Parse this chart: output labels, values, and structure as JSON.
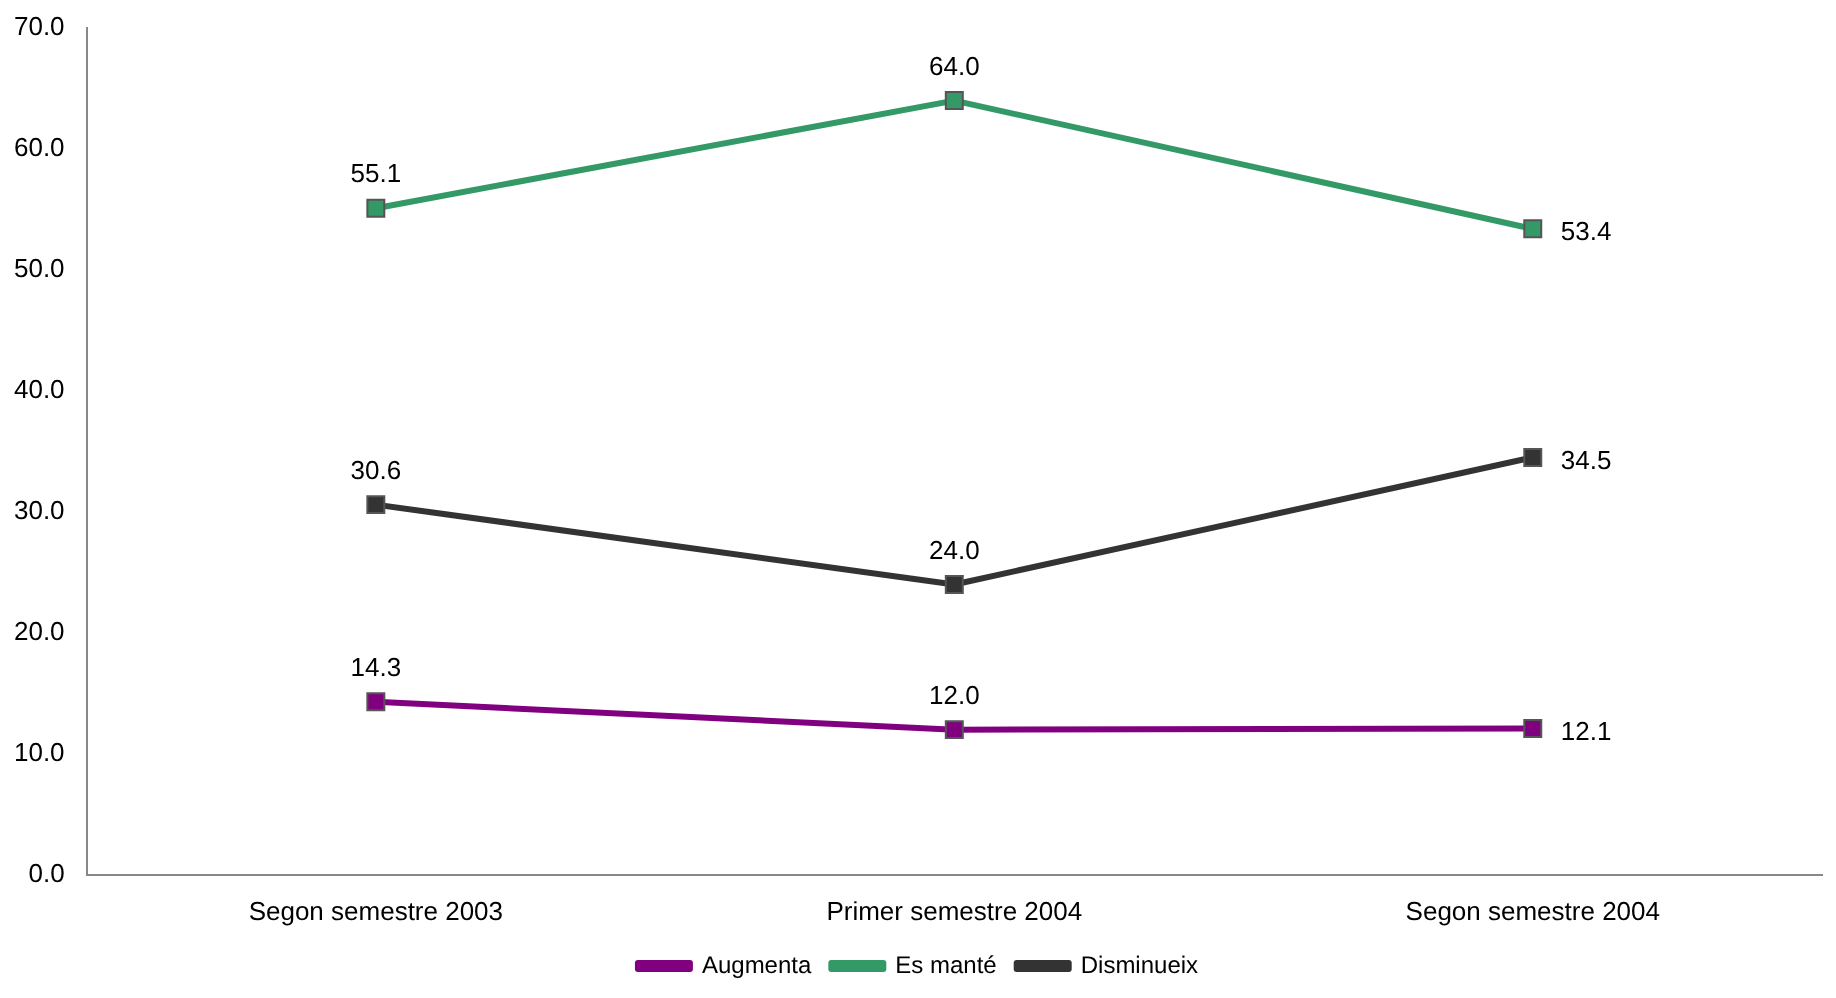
{
  "chart_data": {
    "type": "line",
    "categories": [
      "Segon semestre 2003",
      "Primer semestre 2004",
      "Segon semestre 2004"
    ],
    "series": [
      {
        "name": "Augmenta",
        "color": "#800080",
        "values": [
          14.3,
          12.0,
          12.1
        ],
        "value_labels": [
          "14.3",
          "12.0",
          "12.1"
        ]
      },
      {
        "name": "Es manté",
        "color": "#339966",
        "values": [
          55.1,
          64.0,
          53.4
        ],
        "value_labels": [
          "55.1",
          "64.0",
          "53.4"
        ]
      },
      {
        "name": "Disminueix",
        "color": "#333333",
        "values": [
          30.6,
          24.0,
          34.5
        ],
        "value_labels": [
          "30.6",
          "24.0",
          "34.5"
        ]
      }
    ],
    "ylim": [
      0,
      70
    ],
    "yticks": [
      {
        "value": 0,
        "label": "0.0"
      },
      {
        "value": 10,
        "label": "10.0"
      },
      {
        "value": 20,
        "label": "20.0"
      },
      {
        "value": 30,
        "label": "30.0"
      },
      {
        "value": 40,
        "label": "40.0"
      },
      {
        "value": 50,
        "label": "50.0"
      },
      {
        "value": 60,
        "label": "60.0"
      },
      {
        "value": 70,
        "label": "70.0"
      }
    ],
    "grid": false,
    "legend": "bottom",
    "marker": "square",
    "line_style": "solid"
  }
}
